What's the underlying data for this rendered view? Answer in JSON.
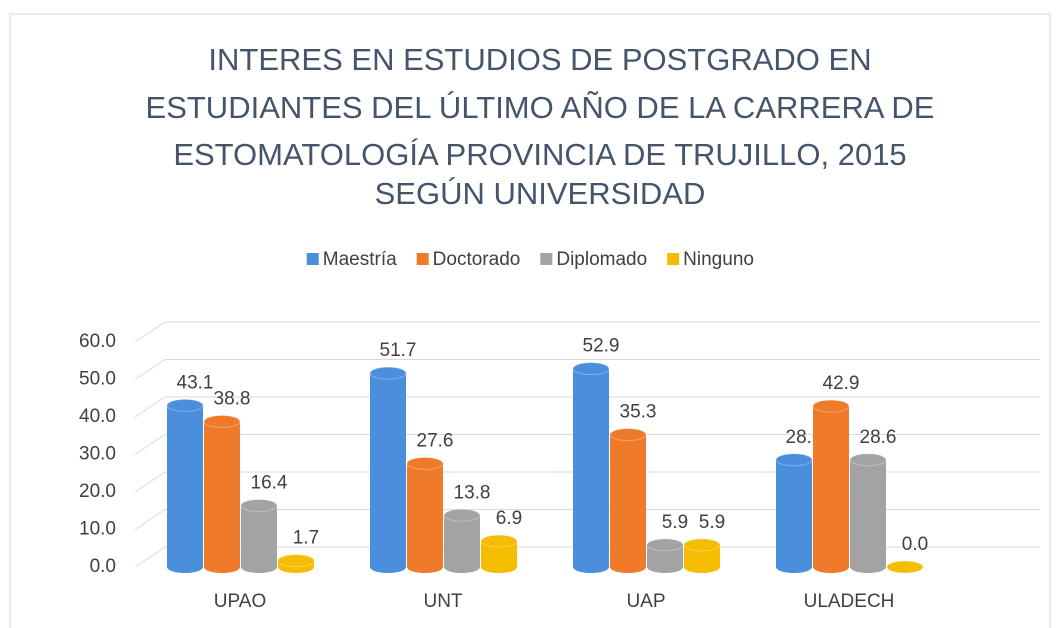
{
  "chart_data": {
    "type": "bar",
    "title": [
      "INTERES EN ESTUDIOS DE POSTGRADO EN",
      "ESTUDIANTES DEL ÚLTIMO AÑO DE LA CARRERA DE",
      "ESTOMATOLOGÍA PROVINCIA DE TRUJILLO, 2015",
      "SEGÚN UNIVERSIDAD"
    ],
    "categories": [
      "UPAO",
      "UNT",
      "UAP",
      "ULADECH"
    ],
    "series": [
      {
        "name": "Maestría",
        "color": "#4a8fdb",
        "values": [
          43.1,
          51.7,
          52.9,
          28.6
        ],
        "value_labels": [
          "43.1",
          "51.7",
          "52.9",
          "28.6"
        ]
      },
      {
        "name": "Doctorado",
        "color": "#ee7a2a",
        "values": [
          38.8,
          27.6,
          35.3,
          42.9
        ],
        "value_labels": [
          "38.8",
          "27.6",
          "35.3",
          "42.9"
        ]
      },
      {
        "name": "Diplomado",
        "color": "#a3a3a3",
        "values": [
          16.4,
          13.8,
          5.9,
          28.6
        ],
        "value_labels": [
          "16.4",
          "13.8",
          "5.9",
          "28.6"
        ]
      },
      {
        "name": "Ninguno",
        "color": "#f5bd00",
        "values": [
          1.7,
          6.9,
          5.9,
          0.0
        ],
        "value_labels": [
          "1.7",
          "6.9",
          "5.9",
          "0.0"
        ]
      }
    ],
    "ylim": [
      0,
      60
    ],
    "yticks": [
      {
        "value": 0,
        "label": "0.0"
      },
      {
        "value": 10,
        "label": "10.0"
      },
      {
        "value": 20,
        "label": "20.0"
      },
      {
        "value": 30,
        "label": "30.0"
      },
      {
        "value": 40,
        "label": "40.0"
      },
      {
        "value": 50,
        "label": "50.0"
      },
      {
        "value": 60,
        "label": "60.0"
      }
    ],
    "grid": true,
    "legend": "top"
  }
}
